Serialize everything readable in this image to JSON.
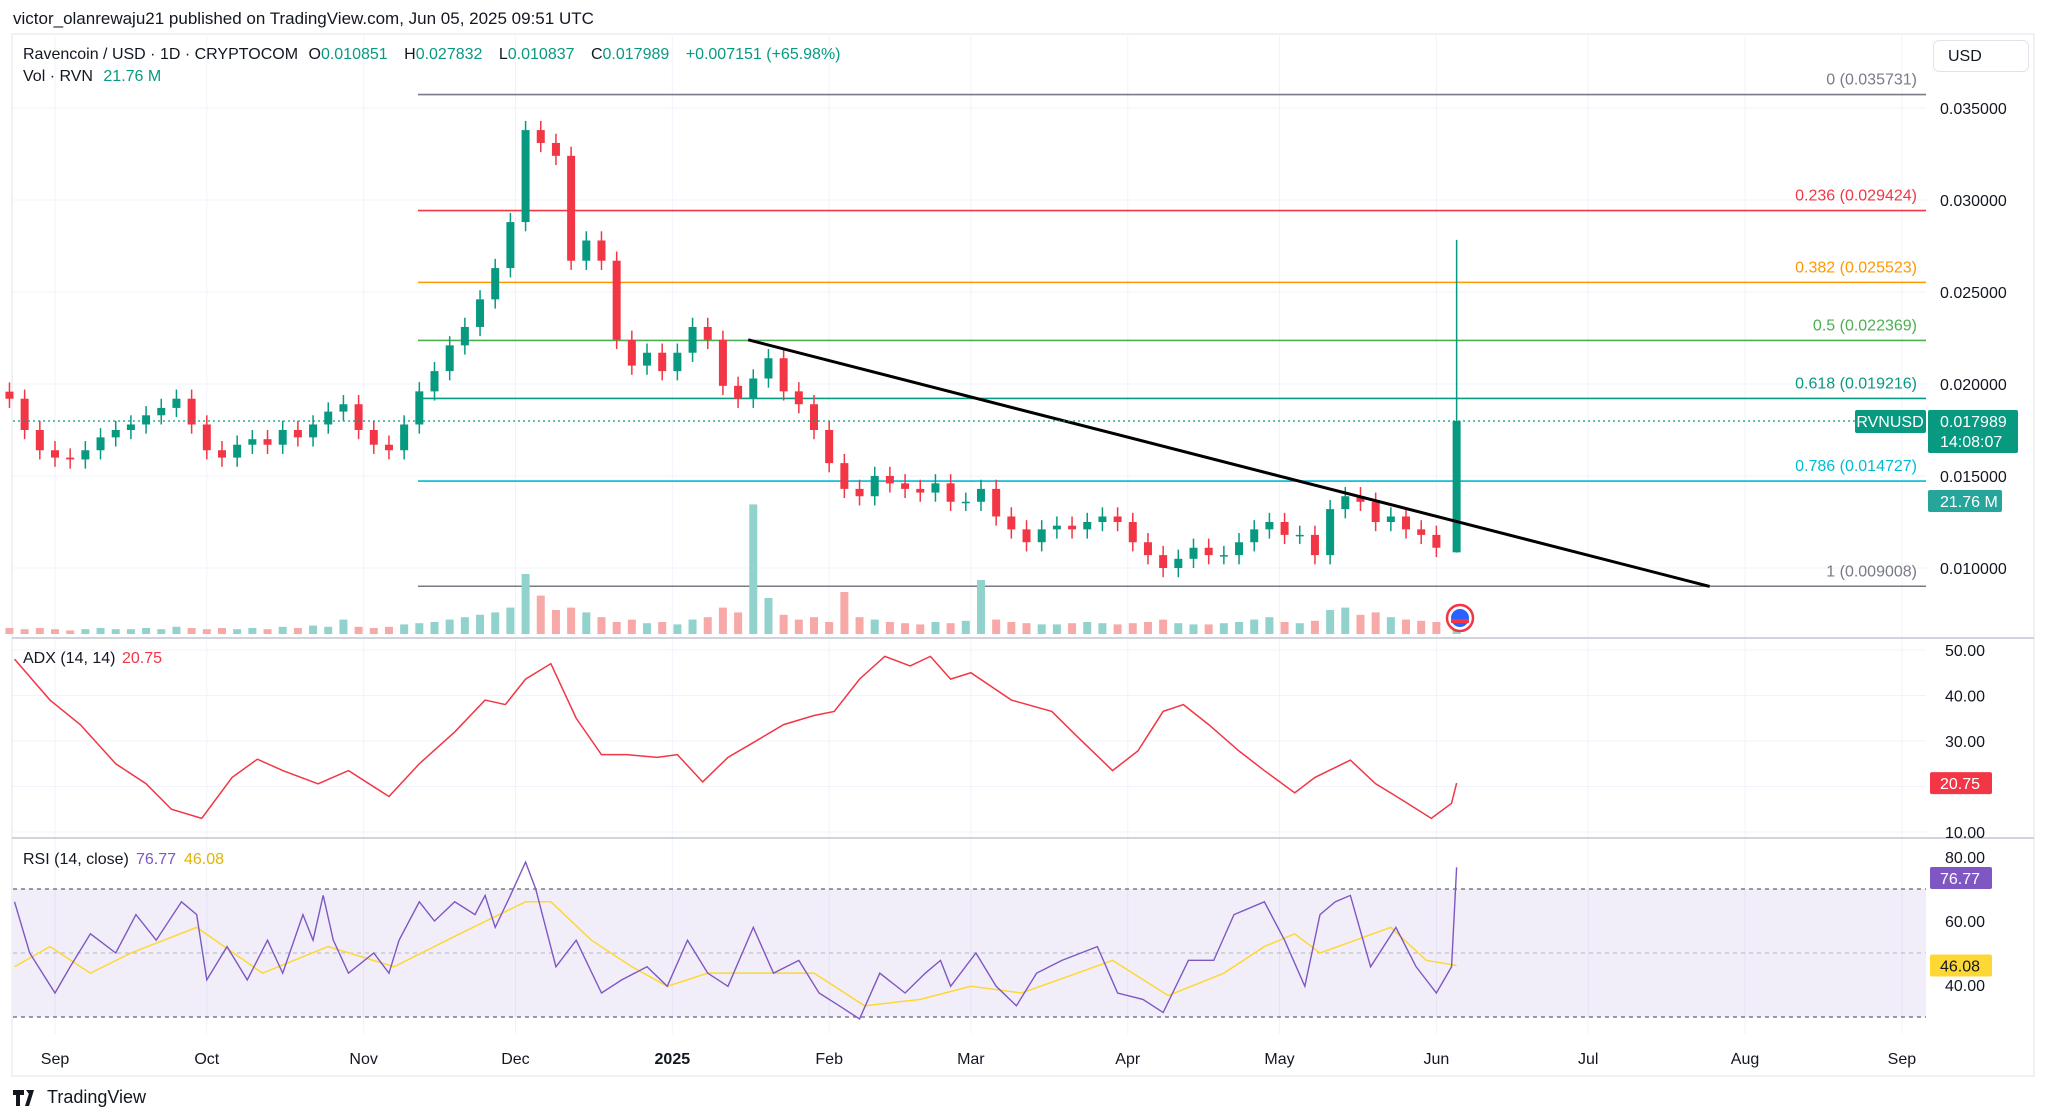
{
  "publisher": "victor_olanrewaju21 published on TradingView.com, Jun 05, 2025 09:51 UTC",
  "symbol": {
    "title": "Ravencoin / USD · 1D · CRYPTOCOM",
    "open_label": "O",
    "open": "0.010851",
    "high_label": "H",
    "high": "0.027832",
    "low_label": "L",
    "low": "0.010837",
    "close_label": "C",
    "close": "0.017989",
    "change": "+0.007151 (+65.98%)",
    "vol_label": "Vol · RVN",
    "vol_value": "21.76 M"
  },
  "currency_button": "USD",
  "price_axis": [
    "0.035000",
    "0.030000",
    "0.025000",
    "0.020000",
    "0.015000",
    "0.010000"
  ],
  "last_price_tag": {
    "symbol": "RVNUSD",
    "price": "0.017989",
    "countdown": "14:08:07",
    "volume": "21.76 M"
  },
  "time_axis": [
    "Sep",
    "Oct",
    "Nov",
    "Dec",
    "2025",
    "Feb",
    "Mar",
    "Apr",
    "May",
    "Jun",
    "Jul",
    "Aug",
    "Sep"
  ],
  "fib_levels": [
    {
      "label": "0 (0.035731)",
      "level": 0.035731,
      "color": "#787b86"
    },
    {
      "label": "0.236 (0.029424)",
      "level": 0.029424,
      "color": "#f23645"
    },
    {
      "label": "0.382 (0.025523)",
      "level": 0.025523,
      "color": "#ff9800"
    },
    {
      "label": "0.5 (0.022369)",
      "level": 0.022369,
      "color": "#4caf50"
    },
    {
      "label": "0.618 (0.019216)",
      "level": 0.019216,
      "color": "#089981"
    },
    {
      "label": "0.786 (0.014727)",
      "level": 0.014727,
      "color": "#00bcd4"
    },
    {
      "label": "1 (0.009008)",
      "level": 0.009008,
      "color": "#787b86"
    }
  ],
  "adx": {
    "title": "ADX (14, 14)",
    "value": "20.75",
    "axis": [
      "50.00",
      "40.00",
      "30.00",
      "20.75",
      "10.00"
    ],
    "color": "#f23645"
  },
  "rsi": {
    "title": "RSI (14, close)",
    "value": "76.77",
    "ma_value": "46.08",
    "axis": [
      "80.00",
      "60.00",
      "40.00"
    ],
    "color": "#7e57c2",
    "ma_color": "#fdd835"
  },
  "brand": "TradingView",
  "chart_data": {
    "type": "candlestick",
    "symbol": "RVNUSD",
    "ylim": [
      0.0075,
      0.0365
    ],
    "price_series": {
      "start": "2024-08-23",
      "interval_days": 3,
      "close": [
        0.0192,
        0.0175,
        0.0164,
        0.016,
        0.0159,
        0.0164,
        0.0171,
        0.0175,
        0.0178,
        0.0183,
        0.0187,
        0.0192,
        0.0178,
        0.0164,
        0.016,
        0.0167,
        0.017,
        0.0167,
        0.0175,
        0.0171,
        0.0178,
        0.0185,
        0.0189,
        0.0175,
        0.0167,
        0.0164,
        0.0178,
        0.0196,
        0.0207,
        0.0221,
        0.0231,
        0.0246,
        0.0263,
        0.0288,
        0.0338,
        0.0331,
        0.0324,
        0.0267,
        0.0278,
        0.0267,
        0.0224,
        0.021,
        0.0217,
        0.0207,
        0.0217,
        0.0231,
        0.0224,
        0.0199,
        0.0192,
        0.0203,
        0.0214,
        0.0196,
        0.0189,
        0.0175,
        0.0157,
        0.0143,
        0.0139,
        0.015,
        0.0146,
        0.0143,
        0.0141,
        0.0146,
        0.0136,
        0.0136,
        0.0143,
        0.0128,
        0.0121,
        0.0114,
        0.0121,
        0.0123,
        0.0121,
        0.0125,
        0.0128,
        0.0125,
        0.0114,
        0.0107,
        0.01,
        0.0105,
        0.0111,
        0.0107,
        0.0107,
        0.0114,
        0.0121,
        0.0125,
        0.0118,
        0.0118,
        0.0107,
        0.0132,
        0.0139,
        0.0136,
        0.0125,
        0.0128,
        0.0121,
        0.0118,
        0.0111
      ],
      "volume_m": [
        5,
        4,
        5,
        4,
        3,
        4,
        5,
        4,
        4,
        5,
        4,
        6,
        5,
        4,
        5,
        4,
        5,
        4,
        6,
        5,
        7,
        6,
        12,
        6,
        5,
        6,
        8,
        9,
        10,
        12,
        14,
        16,
        18,
        22,
        50,
        32,
        20,
        22,
        18,
        14,
        10,
        12,
        9,
        10,
        8,
        12,
        14,
        22,
        18,
        108,
        30,
        16,
        12,
        14,
        10,
        35,
        14,
        12,
        10,
        9,
        8,
        10,
        9,
        11,
        45,
        12,
        10,
        9,
        8,
        8,
        9,
        10,
        9,
        8,
        9,
        10,
        12,
        9,
        8,
        8,
        9,
        10,
        12,
        14,
        10,
        9,
        11,
        20,
        22,
        16,
        18,
        14,
        12,
        11,
        10
      ]
    },
    "last_candle": {
      "date": "2025-06-05",
      "open": 0.010851,
      "high": 0.027832,
      "low": 0.010837,
      "close": 0.017989,
      "volume_m": 21.76
    },
    "trendline": [
      {
        "date": "2025-01-16",
        "price": 0.0224
      },
      {
        "date": "2025-07-25",
        "price": 0.009
      }
    ],
    "adx_series": [
      [
        "2024-08-24",
        48
      ],
      [
        "2024-08-31",
        39
      ],
      [
        "2024-09-06",
        33.6
      ],
      [
        "2024-09-13",
        25
      ],
      [
        "2024-09-19",
        20.6
      ],
      [
        "2024-09-24",
        15
      ],
      [
        "2024-09-30",
        13
      ],
      [
        "2024-10-06",
        22
      ],
      [
        "2024-10-11",
        26
      ],
      [
        "2024-10-16",
        23.5
      ],
      [
        "2024-10-23",
        20.6
      ],
      [
        "2024-10-29",
        23.5
      ],
      [
        "2024-11-06",
        17.8
      ],
      [
        "2024-11-12",
        25
      ],
      [
        "2024-11-19",
        32
      ],
      [
        "2024-11-25",
        39
      ],
      [
        "2024-11-29",
        38
      ],
      [
        "2024-12-03",
        43.6
      ],
      [
        "2024-12-08",
        47
      ],
      [
        "2024-12-13",
        35
      ],
      [
        "2024-12-18",
        27
      ],
      [
        "2024-12-23",
        27
      ],
      [
        "2024-12-29",
        26.4
      ],
      [
        "2025-01-02",
        27
      ],
      [
        "2025-01-07",
        21
      ],
      [
        "2025-01-12",
        26.4
      ],
      [
        "2025-01-16",
        29
      ],
      [
        "2025-01-23",
        33.6
      ],
      [
        "2025-01-29",
        35.6
      ],
      [
        "2025-02-02",
        36.5
      ],
      [
        "2025-02-07",
        43.6
      ],
      [
        "2025-02-12",
        48.6
      ],
      [
        "2025-02-17",
        46.5
      ],
      [
        "2025-02-21",
        48.6
      ],
      [
        "2025-02-25",
        43.6
      ],
      [
        "2025-03-01",
        45
      ],
      [
        "2025-03-09",
        39
      ],
      [
        "2025-03-17",
        36.5
      ],
      [
        "2025-03-22",
        31
      ],
      [
        "2025-03-29",
        23.5
      ],
      [
        "2025-04-03",
        27.8
      ],
      [
        "2025-04-08",
        36.5
      ],
      [
        "2025-04-12",
        38
      ],
      [
        "2025-04-17",
        33.6
      ],
      [
        "2025-04-23",
        27.8
      ],
      [
        "2025-04-28",
        23.5
      ],
      [
        "2025-05-04",
        18.6
      ],
      [
        "2025-05-08",
        22
      ],
      [
        "2025-05-15",
        25.8
      ],
      [
        "2025-05-20",
        20.6
      ],
      [
        "2025-05-25",
        17.2
      ],
      [
        "2025-05-31",
        13
      ],
      [
        "2025-06-04",
        16.3
      ],
      [
        "2025-06-05",
        20.75
      ]
    ],
    "adx_ylim": [
      10,
      50
    ],
    "rsi_series": [
      [
        "2024-08-24",
        66
      ],
      [
        "2024-08-27",
        50
      ],
      [
        "2024-09-01",
        37.5
      ],
      [
        "2024-09-04",
        45.7
      ],
      [
        "2024-09-08",
        56
      ],
      [
        "2024-09-13",
        50
      ],
      [
        "2024-09-17",
        62
      ],
      [
        "2024-09-21",
        54
      ],
      [
        "2024-09-26",
        66
      ],
      [
        "2024-09-29",
        62
      ],
      [
        "2024-10-01",
        41.6
      ],
      [
        "2024-10-05",
        52
      ],
      [
        "2024-10-09",
        41.6
      ],
      [
        "2024-10-13",
        54
      ],
      [
        "2024-10-16",
        43.7
      ],
      [
        "2024-10-20",
        62
      ],
      [
        "2024-10-22",
        54
      ],
      [
        "2024-10-24",
        68
      ],
      [
        "2024-10-26",
        54
      ],
      [
        "2024-10-29",
        43.7
      ],
      [
        "2024-11-03",
        50
      ],
      [
        "2024-11-06",
        43.7
      ],
      [
        "2024-11-08",
        54
      ],
      [
        "2024-11-12",
        66
      ],
      [
        "2024-11-15",
        60
      ],
      [
        "2024-11-19",
        66
      ],
      [
        "2024-11-23",
        62
      ],
      [
        "2024-11-25",
        68
      ],
      [
        "2024-11-27",
        58
      ],
      [
        "2024-11-30",
        68
      ],
      [
        "2024-12-03",
        78.4
      ],
      [
        "2024-12-05",
        70
      ],
      [
        "2024-12-09",
        45.7
      ],
      [
        "2024-12-13",
        54
      ],
      [
        "2024-12-18",
        37.5
      ],
      [
        "2024-12-22",
        41.6
      ],
      [
        "2024-12-27",
        45.7
      ],
      [
        "2024-12-31",
        39.6
      ],
      [
        "2025-01-04",
        54
      ],
      [
        "2025-01-08",
        43.7
      ],
      [
        "2025-01-12",
        39.6
      ],
      [
        "2025-01-17",
        58
      ],
      [
        "2025-01-21",
        43.7
      ],
      [
        "2025-01-26",
        47.7
      ],
      [
        "2025-01-30",
        37.5
      ],
      [
        "2025-02-03",
        33.5
      ],
      [
        "2025-02-07",
        29.4
      ],
      [
        "2025-02-11",
        43.7
      ],
      [
        "2025-02-16",
        37.5
      ],
      [
        "2025-02-20",
        43.7
      ],
      [
        "2025-02-23",
        47.7
      ],
      [
        "2025-02-25",
        39.6
      ],
      [
        "2025-03-02",
        50
      ],
      [
        "2025-03-06",
        39.6
      ],
      [
        "2025-03-10",
        33.5
      ],
      [
        "2025-03-14",
        43.7
      ],
      [
        "2025-03-19",
        47.7
      ],
      [
        "2025-03-26",
        52
      ],
      [
        "2025-03-30",
        37.5
      ],
      [
        "2025-04-04",
        35.5
      ],
      [
        "2025-04-08",
        31.4
      ],
      [
        "2025-04-13",
        47.7
      ],
      [
        "2025-04-18",
        47.7
      ],
      [
        "2025-04-22",
        62
      ],
      [
        "2025-04-28",
        66
      ],
      [
        "2025-05-02",
        54
      ],
      [
        "2025-05-06",
        39.6
      ],
      [
        "2025-05-09",
        62
      ],
      [
        "2025-05-12",
        66
      ],
      [
        "2025-05-15",
        68
      ],
      [
        "2025-05-19",
        45.7
      ],
      [
        "2025-05-24",
        58
      ],
      [
        "2025-05-28",
        45.7
      ],
      [
        "2025-06-01",
        37.5
      ],
      [
        "2025-06-04",
        45.7
      ],
      [
        "2025-06-05",
        76.77
      ]
    ],
    "rsi_ma_series": [
      [
        "2024-08-24",
        45.7
      ],
      [
        "2024-08-31",
        52
      ],
      [
        "2024-09-08",
        43.7
      ],
      [
        "2024-09-16",
        50
      ],
      [
        "2024-09-29",
        58
      ],
      [
        "2024-10-12",
        43.7
      ],
      [
        "2024-10-25",
        52
      ],
      [
        "2024-11-07",
        45.7
      ],
      [
        "2024-11-20",
        56
      ],
      [
        "2024-12-03",
        66
      ],
      [
        "2024-12-08",
        66
      ],
      [
        "2024-12-16",
        54
      ],
      [
        "2024-12-24",
        45.7
      ],
      [
        "2024-12-31",
        39.6
      ],
      [
        "2025-01-08",
        43.7
      ],
      [
        "2025-01-18",
        43.7
      ],
      [
        "2025-01-29",
        43.7
      ],
      [
        "2025-02-08",
        33.5
      ],
      [
        "2025-02-19",
        35.5
      ],
      [
        "2025-03-01",
        39.6
      ],
      [
        "2025-03-11",
        37.5
      ],
      [
        "2025-03-22",
        43.7
      ],
      [
        "2025-03-29",
        47.7
      ],
      [
        "2025-04-09",
        36.7
      ],
      [
        "2025-04-20",
        43.7
      ],
      [
        "2025-04-28",
        52
      ],
      [
        "2025-05-04",
        56
      ],
      [
        "2025-05-09",
        50
      ],
      [
        "2025-05-16",
        54
      ],
      [
        "2025-05-23",
        58
      ],
      [
        "2025-05-30",
        47.7
      ],
      [
        "2025-06-05",
        46.08
      ]
    ],
    "rsi_bands": [
      30,
      50,
      70
    ],
    "rsi_ylim": [
      25,
      85
    ],
    "colors": {
      "up": "#089981",
      "down": "#f23645",
      "up_vol": "#92d2cc",
      "down_vol": "#f7a9a7",
      "trendline": "#000000",
      "rsi_band": "#7e57c2"
    }
  }
}
